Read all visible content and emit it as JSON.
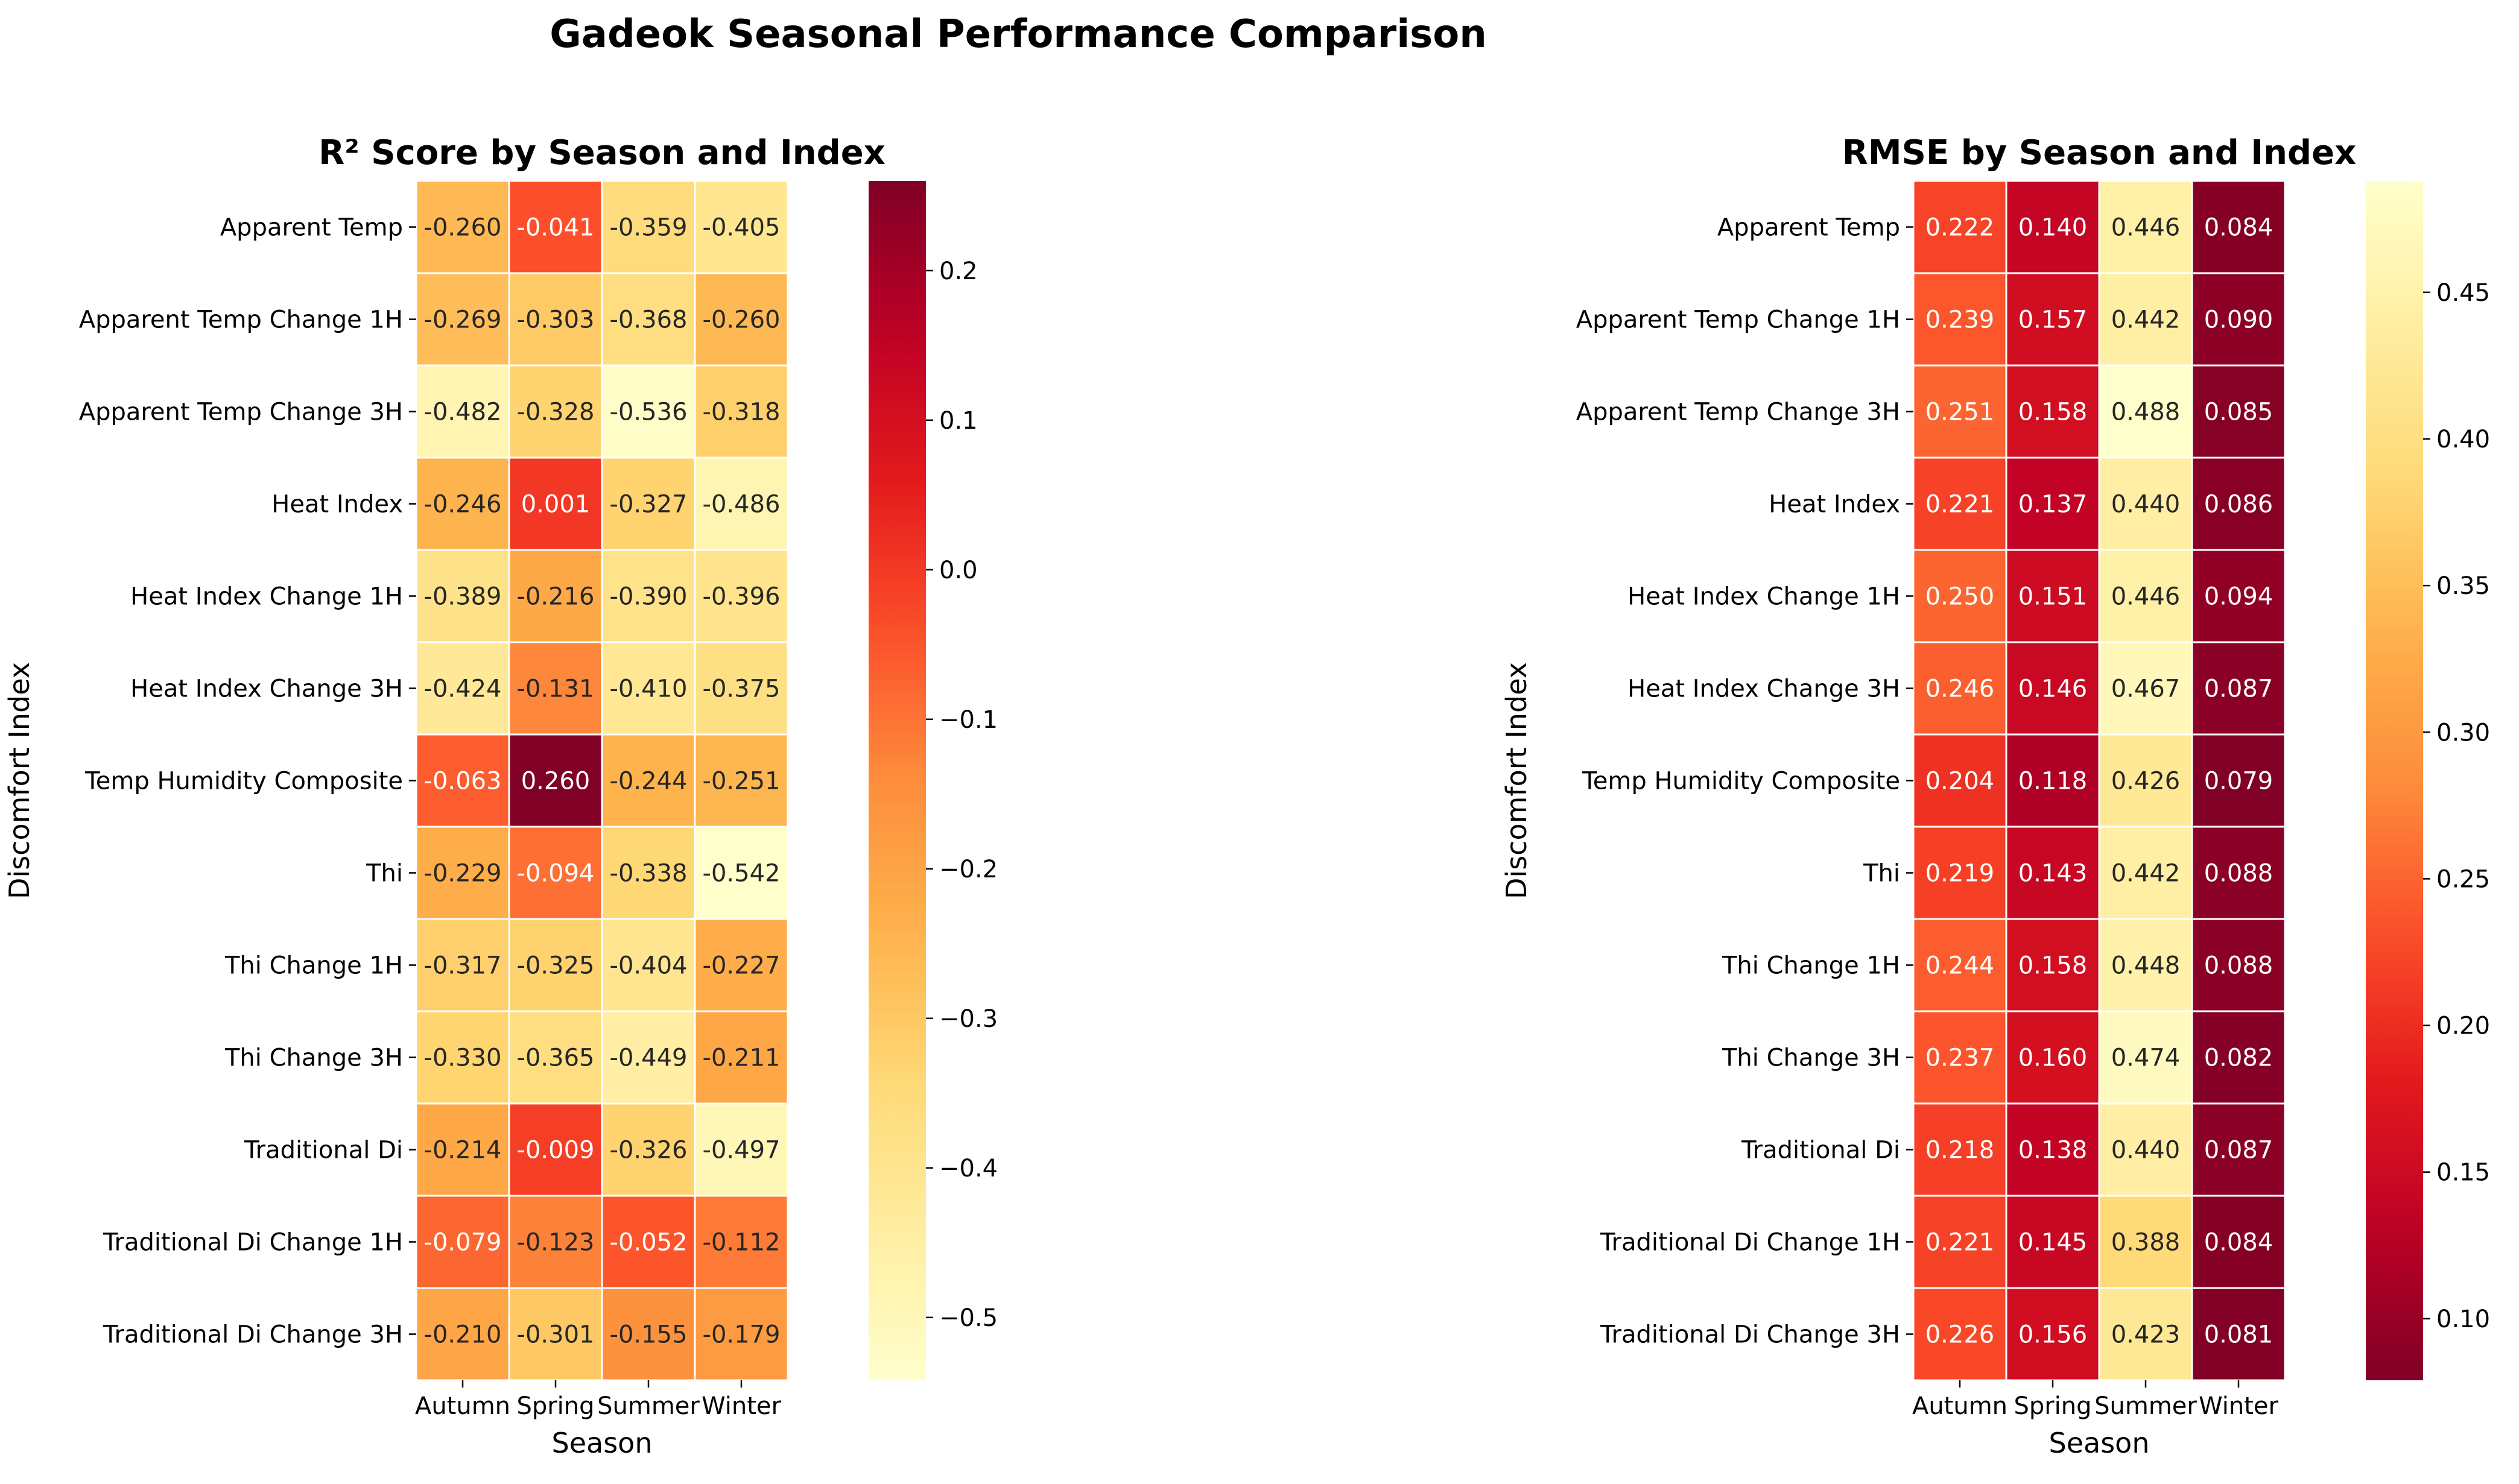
{
  "figure_title": "Gadeok Seasonal Performance Comparison",
  "chart_data": [
    {
      "type": "heatmap",
      "title": "R² Score by Season and Index",
      "xlabel": "Season",
      "ylabel": "Discomfort Index",
      "columns": [
        "Autumn",
        "Spring",
        "Summer",
        "Winter"
      ],
      "rows": [
        "Apparent Temp",
        "Apparent Temp Change 1H",
        "Apparent Temp Change 3H",
        "Heat Index",
        "Heat Index Change 1H",
        "Heat Index Change 3H",
        "Temp Humidity Composite",
        "Thi",
        "Thi Change 1H",
        "Thi Change 3H",
        "Traditional Di",
        "Traditional Di Change 1H",
        "Traditional Di Change 3H"
      ],
      "values": [
        [
          -0.26,
          -0.041,
          -0.359,
          -0.405
        ],
        [
          -0.269,
          -0.303,
          -0.368,
          -0.26
        ],
        [
          -0.482,
          -0.328,
          -0.536,
          -0.318
        ],
        [
          -0.246,
          0.001,
          -0.327,
          -0.486
        ],
        [
          -0.389,
          -0.216,
          -0.39,
          -0.396
        ],
        [
          -0.424,
          -0.131,
          -0.41,
          -0.375
        ],
        [
          -0.063,
          0.26,
          -0.244,
          -0.251
        ],
        [
          -0.229,
          -0.094,
          -0.338,
          -0.542
        ],
        [
          -0.317,
          -0.325,
          -0.404,
          -0.227
        ],
        [
          -0.33,
          -0.365,
          -0.449,
          -0.211
        ],
        [
          -0.214,
          -0.009,
          -0.326,
          -0.497
        ],
        [
          -0.079,
          -0.123,
          -0.052,
          -0.112
        ],
        [
          -0.21,
          -0.301,
          -0.155,
          -0.179
        ]
      ],
      "value_range": [
        -0.542,
        0.26
      ],
      "colormap": "YlOrRd",
      "colorbar_ticks": [
        0.2,
        0.1,
        0.0,
        -0.1,
        -0.2,
        -0.3,
        -0.4,
        -0.5
      ],
      "colorbar_tick_labels": [
        "0.2",
        "0.1",
        "0.0",
        "−0.1",
        "−0.2",
        "−0.3",
        "−0.4",
        "−0.5"
      ]
    },
    {
      "type": "heatmap",
      "title": "RMSE by Season and Index",
      "xlabel": "Season",
      "ylabel": "Discomfort Index",
      "columns": [
        "Autumn",
        "Spring",
        "Summer",
        "Winter"
      ],
      "rows": [
        "Apparent Temp",
        "Apparent Temp Change 1H",
        "Apparent Temp Change 3H",
        "Heat Index",
        "Heat Index Change 1H",
        "Heat Index Change 3H",
        "Temp Humidity Composite",
        "Thi",
        "Thi Change 1H",
        "Thi Change 3H",
        "Traditional Di",
        "Traditional Di Change 1H",
        "Traditional Di Change 3H"
      ],
      "values": [
        [
          0.222,
          0.14,
          0.446,
          0.084
        ],
        [
          0.239,
          0.157,
          0.442,
          0.09
        ],
        [
          0.251,
          0.158,
          0.488,
          0.085
        ],
        [
          0.221,
          0.137,
          0.44,
          0.086
        ],
        [
          0.25,
          0.151,
          0.446,
          0.094
        ],
        [
          0.246,
          0.146,
          0.467,
          0.087
        ],
        [
          0.204,
          0.118,
          0.426,
          0.079
        ],
        [
          0.219,
          0.143,
          0.442,
          0.088
        ],
        [
          0.244,
          0.158,
          0.448,
          0.088
        ],
        [
          0.237,
          0.16,
          0.474,
          0.082
        ],
        [
          0.218,
          0.138,
          0.44,
          0.087
        ],
        [
          0.221,
          0.145,
          0.388,
          0.084
        ],
        [
          0.226,
          0.156,
          0.423,
          0.081
        ]
      ],
      "value_range": [
        0.079,
        0.488
      ],
      "colormap": "YlOrRd_r",
      "colorbar_ticks": [
        0.45,
        0.4,
        0.35,
        0.3,
        0.25,
        0.2,
        0.15,
        0.1
      ],
      "colorbar_tick_labels": [
        "0.45",
        "0.40",
        "0.35",
        "0.30",
        "0.25",
        "0.20",
        "0.15",
        "0.10"
      ]
    }
  ]
}
